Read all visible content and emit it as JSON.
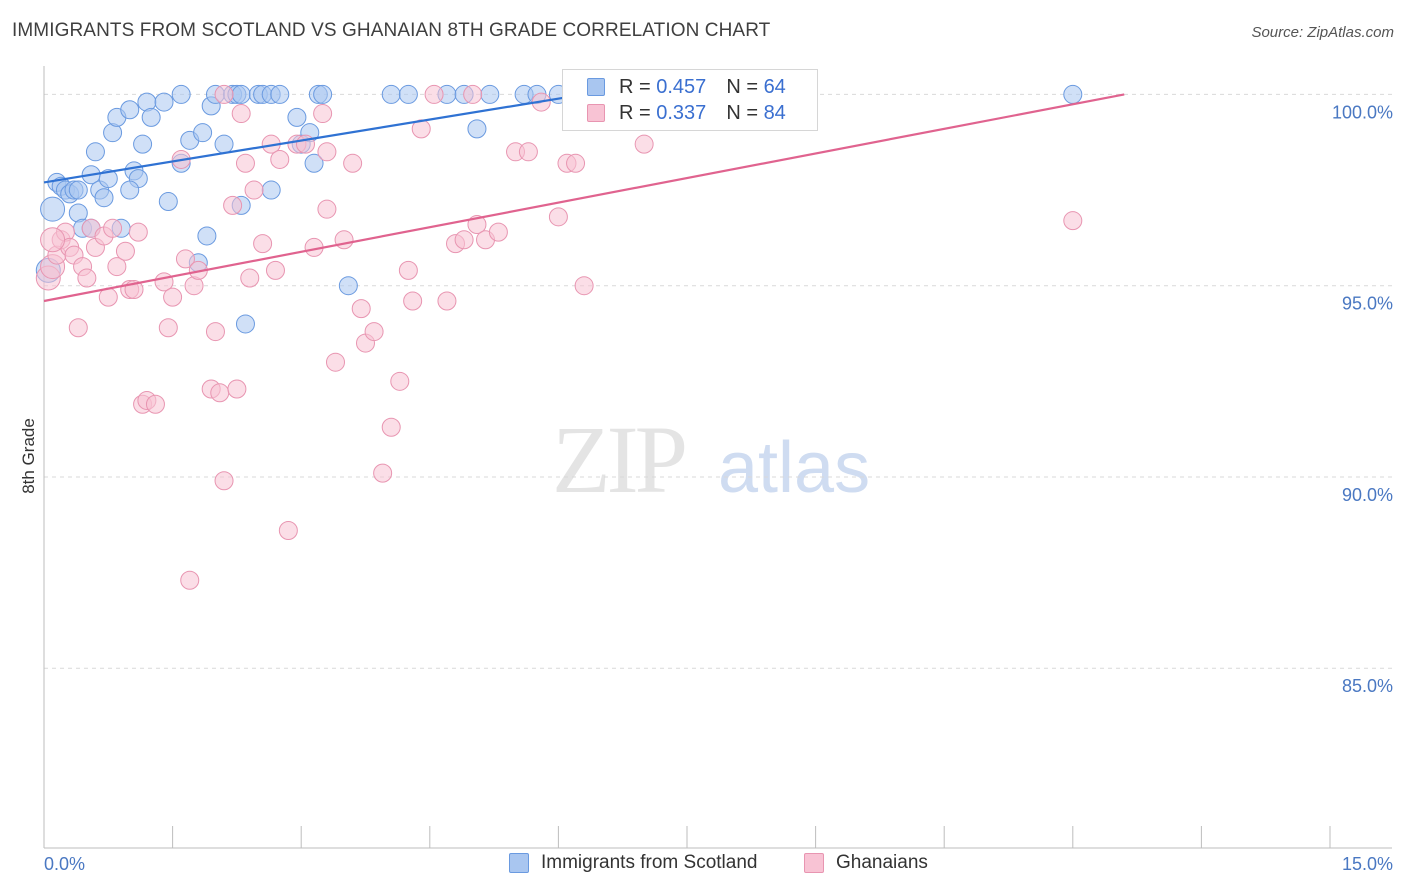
{
  "title": "IMMIGRANTS FROM SCOTLAND VS GHANAIAN 8TH GRADE CORRELATION CHART",
  "source": "Source: ZipAtlas.com",
  "watermark": {
    "zip": "ZIP",
    "atlas": "atlas"
  },
  "legend": {
    "r_label": "R =",
    "n_label": "N =",
    "rows": [
      {
        "r": "0.457",
        "n": "64",
        "color": "#a9c6f0",
        "border": "#6a9ae0"
      },
      {
        "r": "0.337",
        "n": "84",
        "color": "#f8c3d4",
        "border": "#e895b1"
      }
    ]
  },
  "bottom_legend": [
    {
      "label": "Immigrants from Scotland",
      "color": "#a9c6f0",
      "border": "#6a9ae0"
    },
    {
      "label": "Ghanaians",
      "color": "#f8c3d4",
      "border": "#e895b1"
    }
  ],
  "chart_data": {
    "type": "scatter",
    "title": "IMMIGRANTS FROM SCOTLAND VS GHANAIAN 8TH GRADE CORRELATION CHART",
    "xlabel": "",
    "ylabel": "8th Grade",
    "xlim": [
      0.0,
      15.0
    ],
    "ylim": [
      80.3,
      100.9
    ],
    "x_tick_labels": [
      {
        "value": 0.0,
        "label": "0.0%"
      },
      {
        "value": 15.0,
        "label": "15.0%"
      }
    ],
    "y_ticks": [
      {
        "value": 100.0,
        "label": "100.0%"
      },
      {
        "value": 95.0,
        "label": "95.0%"
      },
      {
        "value": 90.0,
        "label": "90.0%"
      },
      {
        "value": 85.0,
        "label": "85.0%"
      }
    ],
    "grid": true,
    "series": [
      {
        "name": "Immigrants from Scotland",
        "color": "#6a9ae0",
        "fill": "#a9c6f0",
        "line_color": "#2f72d3",
        "trend": [
          [
            0.0,
            97.7
          ],
          [
            6.3,
            100.0
          ]
        ],
        "points": [
          [
            0.05,
            95.4
          ],
          [
            0.1,
            97.0
          ],
          [
            0.15,
            97.7
          ],
          [
            0.2,
            97.6
          ],
          [
            0.25,
            97.5
          ],
          [
            0.3,
            97.4
          ],
          [
            0.35,
            97.5
          ],
          [
            0.4,
            96.9
          ],
          [
            0.45,
            96.5
          ],
          [
            0.55,
            97.9
          ],
          [
            0.55,
            96.5
          ],
          [
            0.6,
            98.5
          ],
          [
            0.65,
            97.5
          ],
          [
            0.7,
            97.3
          ],
          [
            0.75,
            97.8
          ],
          [
            0.8,
            99.0
          ],
          [
            0.85,
            99.4
          ],
          [
            0.9,
            96.5
          ],
          [
            1.0,
            99.6
          ],
          [
            1.05,
            98.0
          ],
          [
            1.1,
            97.8
          ],
          [
            1.15,
            98.7
          ],
          [
            1.2,
            99.8
          ],
          [
            1.25,
            99.4
          ],
          [
            1.4,
            99.8
          ],
          [
            1.45,
            97.2
          ],
          [
            1.6,
            100.0
          ],
          [
            1.6,
            98.2
          ],
          [
            1.7,
            98.8
          ],
          [
            1.8,
            95.6
          ],
          [
            1.85,
            99.0
          ],
          [
            1.9,
            96.3
          ],
          [
            1.95,
            99.7
          ],
          [
            2.0,
            100.0
          ],
          [
            2.1,
            98.7
          ],
          [
            2.2,
            100.0
          ],
          [
            2.25,
            100.0
          ],
          [
            2.3,
            97.1
          ],
          [
            2.35,
            94.0
          ],
          [
            2.3,
            100.0
          ],
          [
            2.5,
            100.0
          ],
          [
            2.55,
            100.0
          ],
          [
            2.65,
            97.5
          ],
          [
            2.65,
            100.0
          ],
          [
            2.75,
            100.0
          ],
          [
            2.95,
            99.4
          ],
          [
            3.0,
            98.7
          ],
          [
            3.1,
            99.0
          ],
          [
            3.15,
            98.2
          ],
          [
            3.2,
            100.0
          ],
          [
            3.25,
            100.0
          ],
          [
            3.55,
            95.0
          ],
          [
            4.05,
            100.0
          ],
          [
            4.25,
            100.0
          ],
          [
            4.7,
            100.0
          ],
          [
            4.9,
            100.0
          ],
          [
            5.05,
            99.1
          ],
          [
            5.2,
            100.0
          ],
          [
            5.6,
            100.0
          ],
          [
            5.75,
            100.0
          ],
          [
            6.0,
            100.0
          ],
          [
            12.0,
            100.0
          ],
          [
            0.4,
            97.5
          ],
          [
            1.0,
            97.5
          ]
        ]
      },
      {
        "name": "Ghanaians",
        "color": "#e895b1",
        "fill": "#f8c3d4",
        "line_color": "#e0638f",
        "trend": [
          [
            0.0,
            94.6
          ],
          [
            12.6,
            100.0
          ]
        ],
        "points": [
          [
            0.05,
            95.2
          ],
          [
            0.1,
            95.5
          ],
          [
            0.15,
            95.8
          ],
          [
            0.2,
            96.2
          ],
          [
            0.25,
            96.4
          ],
          [
            0.3,
            96.0
          ],
          [
            0.35,
            95.8
          ],
          [
            0.4,
            93.9
          ],
          [
            0.45,
            95.5
          ],
          [
            0.5,
            95.2
          ],
          [
            0.55,
            96.5
          ],
          [
            0.6,
            96.0
          ],
          [
            0.7,
            96.3
          ],
          [
            0.75,
            94.7
          ],
          [
            0.8,
            96.5
          ],
          [
            0.85,
            95.5
          ],
          [
            0.95,
            95.9
          ],
          [
            1.0,
            94.9
          ],
          [
            1.05,
            94.9
          ],
          [
            1.1,
            96.4
          ],
          [
            1.15,
            91.9
          ],
          [
            1.2,
            92.0
          ],
          [
            1.3,
            91.9
          ],
          [
            1.4,
            95.1
          ],
          [
            1.45,
            93.9
          ],
          [
            1.5,
            94.7
          ],
          [
            1.6,
            98.3
          ],
          [
            1.65,
            95.7
          ],
          [
            1.75,
            95.0
          ],
          [
            1.8,
            95.4
          ],
          [
            1.95,
            92.3
          ],
          [
            2.0,
            93.8
          ],
          [
            2.05,
            92.2
          ],
          [
            2.1,
            89.9
          ],
          [
            2.2,
            97.1
          ],
          [
            2.25,
            92.3
          ],
          [
            2.3,
            99.5
          ],
          [
            2.35,
            98.2
          ],
          [
            2.4,
            95.2
          ],
          [
            2.45,
            97.5
          ],
          [
            2.55,
            96.1
          ],
          [
            2.65,
            98.7
          ],
          [
            2.7,
            95.4
          ],
          [
            2.75,
            98.3
          ],
          [
            2.85,
            88.6
          ],
          [
            2.95,
            98.7
          ],
          [
            3.05,
            98.7
          ],
          [
            3.15,
            96.0
          ],
          [
            3.25,
            99.5
          ],
          [
            3.3,
            98.5
          ],
          [
            3.4,
            93.0
          ],
          [
            3.5,
            96.2
          ],
          [
            3.6,
            98.2
          ],
          [
            3.7,
            94.4
          ],
          [
            3.75,
            93.5
          ],
          [
            3.85,
            93.8
          ],
          [
            3.95,
            90.1
          ],
          [
            4.05,
            91.3
          ],
          [
            4.15,
            92.5
          ],
          [
            4.25,
            95.4
          ],
          [
            4.3,
            94.6
          ],
          [
            4.4,
            99.1
          ],
          [
            4.55,
            100.0
          ],
          [
            4.7,
            94.6
          ],
          [
            4.8,
            96.1
          ],
          [
            4.9,
            96.2
          ],
          [
            5.0,
            100.0
          ],
          [
            5.05,
            96.6
          ],
          [
            5.15,
            96.2
          ],
          [
            5.3,
            96.4
          ],
          [
            5.5,
            98.5
          ],
          [
            5.65,
            98.5
          ],
          [
            5.8,
            99.8
          ],
          [
            6.0,
            96.8
          ],
          [
            6.1,
            98.2
          ],
          [
            6.2,
            98.2
          ],
          [
            6.3,
            95.0
          ],
          [
            6.9,
            100.0
          ],
          [
            7.0,
            98.7
          ],
          [
            12.0,
            96.7
          ],
          [
            1.7,
            87.3
          ],
          [
            0.1,
            96.2
          ],
          [
            2.1,
            100.0
          ],
          [
            3.3,
            97.0
          ]
        ]
      }
    ]
  }
}
